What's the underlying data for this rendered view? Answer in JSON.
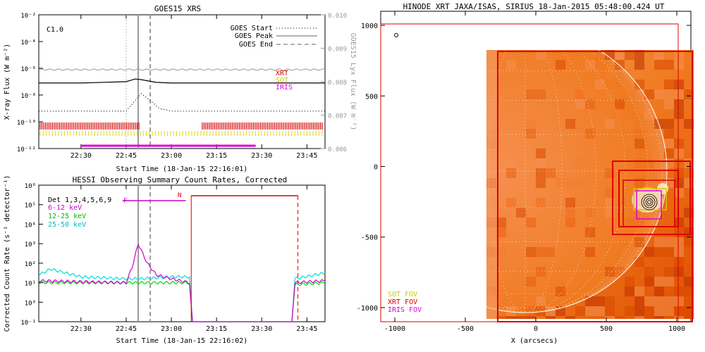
{
  "colors": {
    "goes_long": "#000000",
    "goes_short": "#000000",
    "goes_lyx": "#999999",
    "xrt": "#dd0000",
    "sot": "#dddd00",
    "iris": "#dd00dd",
    "det_6_12": "#cc00cc",
    "det_12_25": "#00dd00",
    "det_25_50": "#00dddd",
    "peak_line": "#888888",
    "hessi_red": "#dd0000"
  },
  "chart_data": [
    {
      "type": "line",
      "title": "GOES15 XRS",
      "flare_class": "C1.0",
      "xlabel": "Start Time (18-Jan-15 22:16:01)",
      "ylabel": "X-ray Flux (W m⁻²)",
      "y2label": "GOES15 Lyx Flux (W m⁻²)",
      "xlim": [
        22.267,
        23.85
      ],
      "x_ticks": [
        "22:30",
        "22:45",
        "23:00",
        "23:15",
        "23:30",
        "23:45"
      ],
      "y_ticks": [
        "10⁻²",
        "10⁻⁴",
        "10⁻⁶",
        "10⁻⁸",
        "10⁻¹⁰",
        "10⁻¹²"
      ],
      "y_exp": [
        -2,
        -4,
        -6,
        -8,
        -10,
        -12
      ],
      "ylim_exp": [
        -12,
        -2
      ],
      "y2_ticks": [
        "0.010",
        "0.009",
        "0.008",
        "0.007",
        "0.006"
      ],
      "y2lim": [
        0.006,
        0.01
      ],
      "legend": [
        "GOES Start",
        "GOES Peak",
        "GOES End"
      ],
      "goes_start": "22:45",
      "goes_peak": "22:49",
      "goes_end": "22:53",
      "instrument_labels": [
        "XRT",
        "SOT",
        "IRIS"
      ],
      "series": [
        {
          "name": "",
          "x": [
            "22:16",
            "22:30",
            "22:45",
            "22:48",
            "22:50",
            "22:55",
            "23:00",
            "23:15",
            "23:30",
            "23:51"
          ],
          "exp": [
            -7.1,
            -7.1,
            -7.0,
            -6.8,
            -6.85,
            -7.05,
            -7.1,
            -7.1,
            -7.1,
            -7.1
          ]
        },
        {
          "name": "",
          "x": [
            "22:16",
            "22:45",
            "22:48",
            "22:50",
            "22:53",
            "22:56",
            "23:00",
            "23:51"
          ],
          "exp": [
            -9.2,
            -9.2,
            -8.4,
            -7.9,
            -8.4,
            -9.0,
            -9.2,
            -9.2
          ]
        },
        {
          "name": "",
          "x": [
            "22:16",
            "23:51"
          ],
          "exp": [
            -6.1,
            -6.1
          ]
        }
      ],
      "iris_bar": [
        "22:30",
        "23:28"
      ]
    },
    {
      "type": "line",
      "title": "HESSI Observing Summary Count Rates, Corrected",
      "xlabel": "Start Time (18-Jan-15 22:16:02)",
      "ylabel": "Corrected Count Rate (s⁻¹ detector⁻¹)",
      "x_ticks": [
        "22:30",
        "22:45",
        "23:00",
        "23:15",
        "23:30",
        "23:45"
      ],
      "y_ticks": [
        "10⁶",
        "10⁵",
        "10⁴",
        "10³",
        "10²",
        "10¹",
        "10⁰",
        "10⁻¹"
      ],
      "y_exp": [
        6,
        5,
        4,
        3,
        2,
        1,
        0,
        -1
      ],
      "ylim_exp": [
        -1,
        6
      ],
      "legend": [
        "Det 1,3,4,5,6,9",
        "6-12 keV",
        "12-25 keV",
        "25-50 keV"
      ],
      "flag_F": "F",
      "flag_N": "N",
      "series": [
        {
          "name": "6-12 keV",
          "x": [
            "22:16",
            "22:45",
            "22:47",
            "22:49",
            "22:52",
            "22:55",
            "23:00",
            "23:06",
            "23:07",
            "23:40",
            "23:41",
            "23:51"
          ],
          "exp": [
            1.1,
            1.0,
            1.8,
            3.0,
            2.0,
            1.4,
            1.2,
            1.0,
            -1,
            -1,
            1.0,
            1.1
          ]
        },
        {
          "name": "12-25 keV",
          "x": [
            "22:16",
            "22:45",
            "23:00",
            "23:06",
            "23:07",
            "23:40",
            "23:41",
            "23:51"
          ],
          "exp": [
            1.0,
            1.0,
            1.0,
            1.0,
            -1,
            -1,
            0.9,
            1.0
          ]
        },
        {
          "name": "25-50 keV",
          "x": [
            "22:16",
            "22:20",
            "22:30",
            "22:45",
            "22:50",
            "23:00",
            "23:06",
            "23:07",
            "23:40",
            "23:41",
            "23:51"
          ],
          "exp": [
            1.4,
            1.7,
            1.3,
            1.2,
            1.2,
            1.3,
            1.3,
            -1,
            -1,
            1.2,
            1.5
          ]
        }
      ]
    },
    {
      "type": "image",
      "title": "HINODE XRT JAXA/ISAS, SIRIUS 18-Jan-2015 05:48:00.424 UT",
      "xlabel": "X (arcsecs)",
      "ylabel": "",
      "xlim": [
        -1100,
        1100
      ],
      "ylim": [
        -1100,
        1100
      ],
      "x_ticks": [
        "-1000",
        "-500",
        "0",
        "500",
        "1000"
      ],
      "y_ticks": [
        "1000",
        "500",
        "0",
        "-500",
        "-1000"
      ],
      "legend": [
        "SOT FOV",
        "XRT FOV",
        "IRIS FOV"
      ]
    }
  ]
}
